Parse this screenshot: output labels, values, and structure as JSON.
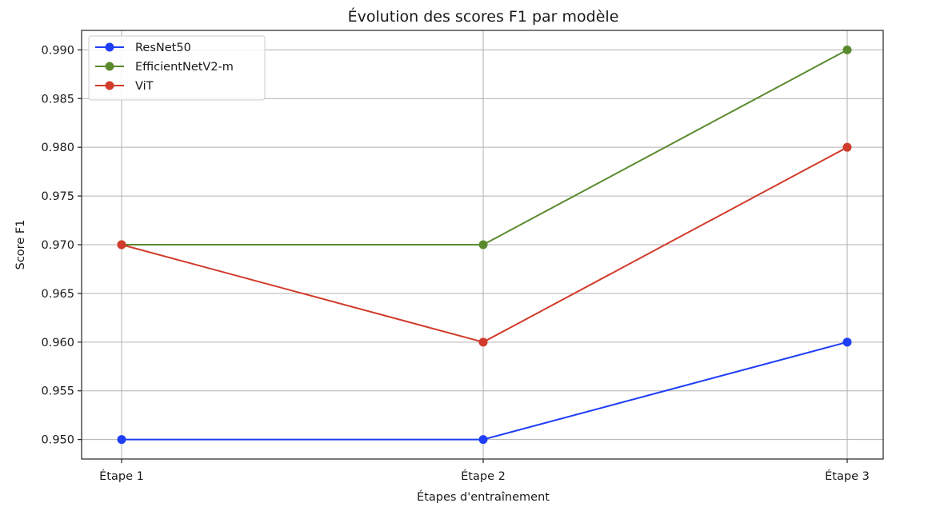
{
  "chart_data": {
    "type": "line",
    "title": "Évolution des scores F1 par modèle",
    "xlabel": "Étapes d'entraînement",
    "ylabel": "Score F1",
    "categories": [
      "Étape 1",
      "Étape 2",
      "Étape 3"
    ],
    "ylim": [
      0.948,
      0.992
    ],
    "yticks": [
      0.95,
      0.955,
      0.96,
      0.965,
      0.97,
      0.975,
      0.98,
      0.985,
      0.99
    ],
    "ytick_labels": [
      "0.950",
      "0.955",
      "0.960",
      "0.965",
      "0.970",
      "0.975",
      "0.980",
      "0.985",
      "0.990"
    ],
    "grid": true,
    "legend_position": "top-left",
    "series": [
      {
        "name": "ResNet50",
        "color": "#1f3ff5",
        "values": [
          0.95,
          0.95,
          0.96
        ]
      },
      {
        "name": "EfficientNetV2-m",
        "color": "#5a8a2e",
        "values": [
          0.97,
          0.97,
          0.99
        ]
      },
      {
        "name": "ViT",
        "color": "#d13b2b",
        "values": [
          0.97,
          0.96,
          0.98
        ]
      }
    ]
  }
}
